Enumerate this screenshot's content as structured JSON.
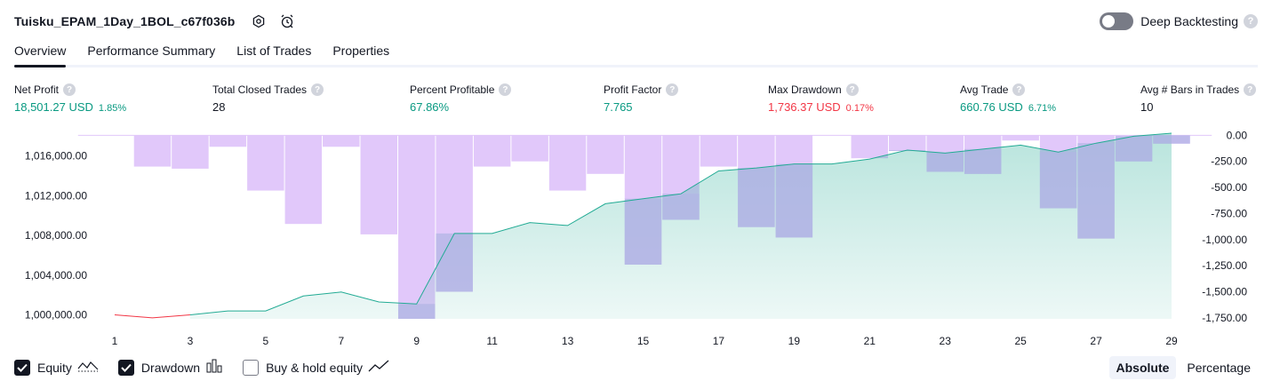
{
  "header": {
    "strategy_name": "Tuisku_EPAM_1Day_1BOL_c67f036b",
    "deep_backtesting_label": "Deep Backtesting",
    "help_glyph": "?"
  },
  "tabs": [
    {
      "label": "Overview",
      "active": true
    },
    {
      "label": "Performance Summary",
      "active": false
    },
    {
      "label": "List of Trades",
      "active": false
    },
    {
      "label": "Properties",
      "active": false
    }
  ],
  "metrics": {
    "net_profit": {
      "label": "Net Profit",
      "value": "18,501.27 USD",
      "pct": "1.85%"
    },
    "total_closed_trades": {
      "label": "Total Closed Trades",
      "value": "28"
    },
    "percent_profitable": {
      "label": "Percent Profitable",
      "value": "67.86%"
    },
    "profit_factor": {
      "label": "Profit Factor",
      "value": "7.765"
    },
    "max_drawdown": {
      "label": "Max Drawdown",
      "value": "1,736.37 USD",
      "pct": "0.17%"
    },
    "avg_trade": {
      "label": "Avg Trade",
      "value": "660.76 USD",
      "pct": "6.71%"
    },
    "avg_bars": {
      "label": "Avg # Bars in Trades",
      "value": "10"
    }
  },
  "legend": {
    "equity": {
      "label": "Equity",
      "checked": true
    },
    "drawdown": {
      "label": "Drawdown",
      "checked": true
    },
    "buy_hold": {
      "label": "Buy & hold equity",
      "checked": false
    }
  },
  "mode": {
    "absolute": "Absolute",
    "percentage": "Percentage",
    "selected": "Absolute"
  },
  "colors": {
    "positive": "#089981",
    "negative": "#f23645",
    "equity_line": "#22ab94",
    "drawdown_bar": "#e1c8fa",
    "overlap_bar": "#b2b5e4"
  },
  "chart_data": {
    "type": "area",
    "x": [
      1,
      2,
      3,
      4,
      5,
      6,
      7,
      8,
      9,
      10,
      11,
      12,
      13,
      14,
      15,
      16,
      17,
      18,
      19,
      20,
      21,
      22,
      23,
      24,
      25,
      26,
      27,
      28,
      29
    ],
    "x_ticks": [
      "1",
      "3",
      "5",
      "7",
      "9",
      "11",
      "13",
      "15",
      "17",
      "19",
      "21",
      "23",
      "25",
      "27",
      "29"
    ],
    "left_axis": {
      "ticks": [
        "1,000,000.00",
        "1,004,000.00",
        "1,008,000.00",
        "1,012,000.00",
        "1,016,000.00"
      ],
      "ylim": [
        999600,
        1018300
      ]
    },
    "right_axis": {
      "ticks": [
        "0.00",
        "-250.00",
        "-500.00",
        "-750.00",
        "-1,000.00",
        "-1,250.00",
        "-1,500.00",
        "-1,750.00"
      ],
      "ylim": [
        -1760,
        20
      ]
    },
    "series": [
      {
        "name": "Equity",
        "kind": "line-area",
        "values": [
          1000000,
          999700,
          1000000,
          1000400,
          1000400,
          1001900,
          1002300,
          1001300,
          1001100,
          1008200,
          1008200,
          1009300,
          1009000,
          1011200,
          1011700,
          1012200,
          1014500,
          1014800,
          1015200,
          1015200,
          1015700,
          1016600,
          1016300,
          1016700,
          1017100,
          1016400,
          1017300,
          1018000,
          1018300
        ]
      },
      {
        "name": "Drawdown",
        "kind": "bar",
        "values": [
          0,
          -300,
          -320,
          -110,
          -530,
          -850,
          -110,
          -950,
          -1760,
          -1500,
          -300,
          -250,
          -530,
          -370,
          -1240,
          -810,
          -300,
          -880,
          -980,
          0,
          -220,
          -150,
          -350,
          -370,
          -50,
          -700,
          -990,
          -250,
          -80
        ]
      }
    ]
  }
}
